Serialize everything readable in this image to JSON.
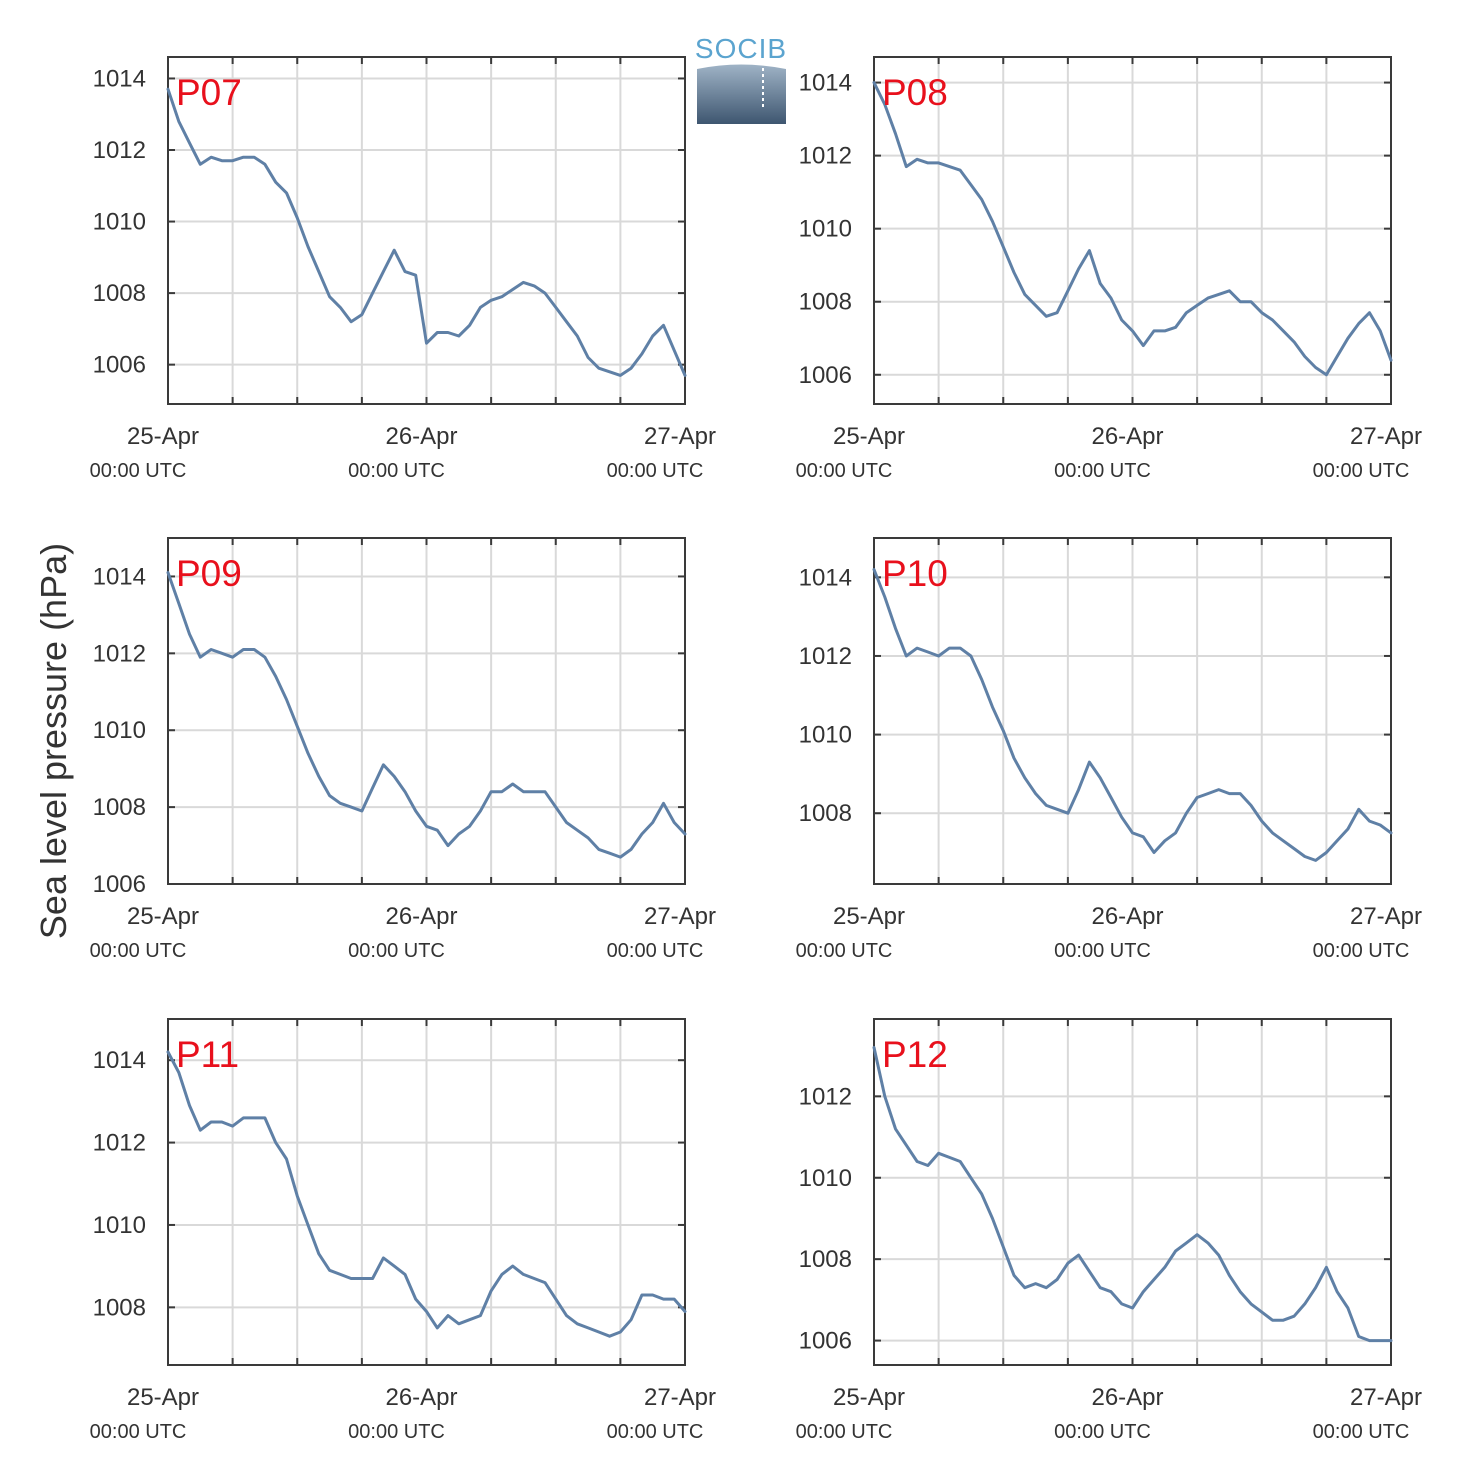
{
  "figure": {
    "ylabel": "Sea level pressure (hPa)",
    "logo_text": "SOCIB",
    "colors": {
      "line": "#5f80a6",
      "label": "#e8101c",
      "grid": "#d9d9d9",
      "axis": "#3a3a3a"
    }
  },
  "chart_data": [
    {
      "type": "line",
      "name": "P07",
      "xlabel": "",
      "ylabel": "Sea level pressure (hPa)",
      "xlim": [
        0,
        48
      ],
      "ylim": [
        1004.9,
        1014.6
      ],
      "yticks": [
        1006,
        1008,
        1010,
        1012,
        1014
      ],
      "xticks": [
        {
          "main": "25-Apr",
          "sub": "00:00 UTC"
        },
        {
          "main": "26-Apr",
          "sub": "00:00 UTC"
        },
        {
          "main": "27-Apr",
          "sub": "00:00 UTC"
        }
      ],
      "grid": true,
      "x": [
        0,
        1,
        2,
        3,
        4,
        5,
        6,
        7,
        8,
        9,
        10,
        11,
        12,
        13,
        14,
        15,
        16,
        17,
        18,
        19,
        20,
        21,
        22,
        23,
        24,
        25,
        26,
        27,
        28,
        29,
        30,
        31,
        32,
        33,
        34,
        35,
        36,
        37,
        38,
        39,
        40,
        41,
        42,
        43,
        44,
        45,
        46,
        47,
        48
      ],
      "values": [
        1013.7,
        1012.8,
        1012.2,
        1011.6,
        1011.8,
        1011.7,
        1011.7,
        1011.8,
        1011.8,
        1011.6,
        1011.1,
        1010.8,
        1010.1,
        1009.3,
        1008.6,
        1007.9,
        1007.6,
        1007.2,
        1007.4,
        1008.0,
        1008.6,
        1009.2,
        1008.6,
        1008.5,
        1006.6,
        1006.9,
        1006.9,
        1006.8,
        1007.1,
        1007.6,
        1007.8,
        1007.9,
        1008.1,
        1008.3,
        1008.2,
        1008.0,
        1007.6,
        1007.2,
        1006.8,
        1006.2,
        1005.9,
        1005.8,
        1005.7,
        1005.9,
        1006.3,
        1006.8,
        1007.1,
        1006.4,
        1005.7
      ]
    },
    {
      "type": "line",
      "name": "P08",
      "xlabel": "",
      "ylabel": "",
      "xlim": [
        0,
        48
      ],
      "ylim": [
        1005.2,
        1014.7
      ],
      "yticks": [
        1006,
        1008,
        1010,
        1012,
        1014
      ],
      "xticks": [
        {
          "main": "25-Apr",
          "sub": "00:00 UTC"
        },
        {
          "main": "26-Apr",
          "sub": "00:00 UTC"
        },
        {
          "main": "27-Apr",
          "sub": "00:00 UTC"
        }
      ],
      "grid": true,
      "x": [
        0,
        1,
        2,
        3,
        4,
        5,
        6,
        7,
        8,
        9,
        10,
        11,
        12,
        13,
        14,
        15,
        16,
        17,
        18,
        19,
        20,
        21,
        22,
        23,
        24,
        25,
        26,
        27,
        28,
        29,
        30,
        31,
        32,
        33,
        34,
        35,
        36,
        37,
        38,
        39,
        40,
        41,
        42,
        43,
        44,
        45,
        46,
        47,
        48
      ],
      "values": [
        1014.0,
        1013.4,
        1012.6,
        1011.7,
        1011.9,
        1011.8,
        1011.8,
        1011.7,
        1011.6,
        1011.2,
        1010.8,
        1010.2,
        1009.5,
        1008.8,
        1008.2,
        1007.9,
        1007.6,
        1007.7,
        1008.3,
        1008.9,
        1009.4,
        1008.5,
        1008.1,
        1007.5,
        1007.2,
        1006.8,
        1007.2,
        1007.2,
        1007.3,
        1007.7,
        1007.9,
        1008.1,
        1008.2,
        1008.3,
        1008.0,
        1008.0,
        1007.7,
        1007.5,
        1007.2,
        1006.9,
        1006.5,
        1006.2,
        1006.0,
        1006.5,
        1007.0,
        1007.4,
        1007.7,
        1007.2,
        1006.4
      ]
    },
    {
      "type": "line",
      "name": "P09",
      "xlabel": "",
      "ylabel": "",
      "xlim": [
        0,
        48
      ],
      "ylim": [
        1006.0,
        1015.0
      ],
      "yticks": [
        1006,
        1008,
        1010,
        1012,
        1014
      ],
      "xticks": [
        {
          "main": "25-Apr",
          "sub": "00:00 UTC"
        },
        {
          "main": "26-Apr",
          "sub": "00:00 UTC"
        },
        {
          "main": "27-Apr",
          "sub": "00:00 UTC"
        }
      ],
      "grid": true,
      "x": [
        0,
        1,
        2,
        3,
        4,
        5,
        6,
        7,
        8,
        9,
        10,
        11,
        12,
        13,
        14,
        15,
        16,
        17,
        18,
        19,
        20,
        21,
        22,
        23,
        24,
        25,
        26,
        27,
        28,
        29,
        30,
        31,
        32,
        33,
        34,
        35,
        36,
        37,
        38,
        39,
        40,
        41,
        42,
        43,
        44,
        45,
        46,
        47,
        48
      ],
      "values": [
        1014.1,
        1013.3,
        1012.5,
        1011.9,
        1012.1,
        1012.0,
        1011.9,
        1012.1,
        1012.1,
        1011.9,
        1011.4,
        1010.8,
        1010.1,
        1009.4,
        1008.8,
        1008.3,
        1008.1,
        1008.0,
        1007.9,
        1008.5,
        1009.1,
        1008.8,
        1008.4,
        1007.9,
        1007.5,
        1007.4,
        1007.0,
        1007.3,
        1007.5,
        1007.9,
        1008.4,
        1008.4,
        1008.6,
        1008.4,
        1008.4,
        1008.4,
        1008.0,
        1007.6,
        1007.4,
        1007.2,
        1006.9,
        1006.8,
        1006.7,
        1006.9,
        1007.3,
        1007.6,
        1008.1,
        1007.6,
        1007.3
      ]
    },
    {
      "type": "line",
      "name": "P10",
      "xlabel": "",
      "ylabel": "",
      "xlim": [
        0,
        48
      ],
      "ylim": [
        1006.2,
        1015.0
      ],
      "yticks": [
        1008,
        1010,
        1012,
        1014
      ],
      "xticks": [
        {
          "main": "25-Apr",
          "sub": "00:00 UTC"
        },
        {
          "main": "26-Apr",
          "sub": "00:00 UTC"
        },
        {
          "main": "27-Apr",
          "sub": "00:00 UTC"
        }
      ],
      "grid": true,
      "x": [
        0,
        1,
        2,
        3,
        4,
        5,
        6,
        7,
        8,
        9,
        10,
        11,
        12,
        13,
        14,
        15,
        16,
        17,
        18,
        19,
        20,
        21,
        22,
        23,
        24,
        25,
        26,
        27,
        28,
        29,
        30,
        31,
        32,
        33,
        34,
        35,
        36,
        37,
        38,
        39,
        40,
        41,
        42,
        43,
        44,
        45,
        46,
        47,
        48
      ],
      "values": [
        1014.2,
        1013.5,
        1012.7,
        1012.0,
        1012.2,
        1012.1,
        1012.0,
        1012.2,
        1012.2,
        1012.0,
        1011.4,
        1010.7,
        1010.1,
        1009.4,
        1008.9,
        1008.5,
        1008.2,
        1008.1,
        1008.0,
        1008.6,
        1009.3,
        1008.9,
        1008.4,
        1007.9,
        1007.5,
        1007.4,
        1007.0,
        1007.3,
        1007.5,
        1008.0,
        1008.4,
        1008.5,
        1008.6,
        1008.5,
        1008.5,
        1008.2,
        1007.8,
        1007.5,
        1007.3,
        1007.1,
        1006.9,
        1006.8,
        1007.0,
        1007.3,
        1007.6,
        1008.1,
        1007.8,
        1007.7,
        1007.5
      ]
    },
    {
      "type": "line",
      "name": "P11",
      "xlabel": "",
      "ylabel": "",
      "xlim": [
        0,
        48
      ],
      "ylim": [
        1006.6,
        1015.0
      ],
      "yticks": [
        1008,
        1010,
        1012,
        1014
      ],
      "xticks": [
        {
          "main": "25-Apr",
          "sub": "00:00 UTC"
        },
        {
          "main": "26-Apr",
          "sub": "00:00 UTC"
        },
        {
          "main": "27-Apr",
          "sub": "00:00 UTC"
        }
      ],
      "grid": true,
      "x": [
        0,
        1,
        2,
        3,
        4,
        5,
        6,
        7,
        8,
        9,
        10,
        11,
        12,
        13,
        14,
        15,
        16,
        17,
        18,
        19,
        20,
        21,
        22,
        23,
        24,
        25,
        26,
        27,
        28,
        29,
        30,
        31,
        32,
        33,
        34,
        35,
        36,
        37,
        38,
        39,
        40,
        41,
        42,
        43,
        44,
        45,
        46,
        47,
        48
      ],
      "values": [
        1014.2,
        1013.7,
        1012.9,
        1012.3,
        1012.5,
        1012.5,
        1012.4,
        1012.6,
        1012.6,
        1012.6,
        1012.0,
        1011.6,
        1010.7,
        1010.0,
        1009.3,
        1008.9,
        1008.8,
        1008.7,
        1008.7,
        1008.7,
        1009.2,
        1009.0,
        1008.8,
        1008.2,
        1007.9,
        1007.5,
        1007.8,
        1007.6,
        1007.7,
        1007.8,
        1008.4,
        1008.8,
        1009.0,
        1008.8,
        1008.7,
        1008.6,
        1008.2,
        1007.8,
        1007.6,
        1007.5,
        1007.4,
        1007.3,
        1007.4,
        1007.7,
        1008.3,
        1008.3,
        1008.2,
        1008.2,
        1007.9
      ]
    },
    {
      "type": "line",
      "name": "P12",
      "xlabel": "",
      "ylabel": "",
      "xlim": [
        0,
        48
      ],
      "ylim": [
        1005.4,
        1013.9
      ],
      "yticks": [
        1006,
        1008,
        1010,
        1012
      ],
      "xticks": [
        {
          "main": "25-Apr",
          "sub": "00:00 UTC"
        },
        {
          "main": "26-Apr",
          "sub": "00:00 UTC"
        },
        {
          "main": "27-Apr",
          "sub": "00:00 UTC"
        }
      ],
      "grid": true,
      "x": [
        0,
        1,
        2,
        3,
        4,
        5,
        6,
        7,
        8,
        9,
        10,
        11,
        12,
        13,
        14,
        15,
        16,
        17,
        18,
        19,
        20,
        21,
        22,
        23,
        24,
        25,
        26,
        27,
        28,
        29,
        30,
        31,
        32,
        33,
        34,
        35,
        36,
        37,
        38,
        39,
        40,
        41,
        42,
        43,
        44,
        45,
        46,
        47,
        48
      ],
      "values": [
        1013.2,
        1012.0,
        1011.2,
        1010.8,
        1010.4,
        1010.3,
        1010.6,
        1010.5,
        1010.4,
        1010.0,
        1009.6,
        1009.0,
        1008.3,
        1007.6,
        1007.3,
        1007.4,
        1007.3,
        1007.5,
        1007.9,
        1008.1,
        1007.7,
        1007.3,
        1007.2,
        1006.9,
        1006.8,
        1007.2,
        1007.5,
        1007.8,
        1008.2,
        1008.4,
        1008.6,
        1008.4,
        1008.1,
        1007.6,
        1007.2,
        1006.9,
        1006.7,
        1006.5,
        1006.5,
        1006.6,
        1006.9,
        1007.3,
        1007.8,
        1007.2,
        1006.8,
        1006.1,
        1006.0,
        1006.0,
        1006.0
      ]
    }
  ]
}
